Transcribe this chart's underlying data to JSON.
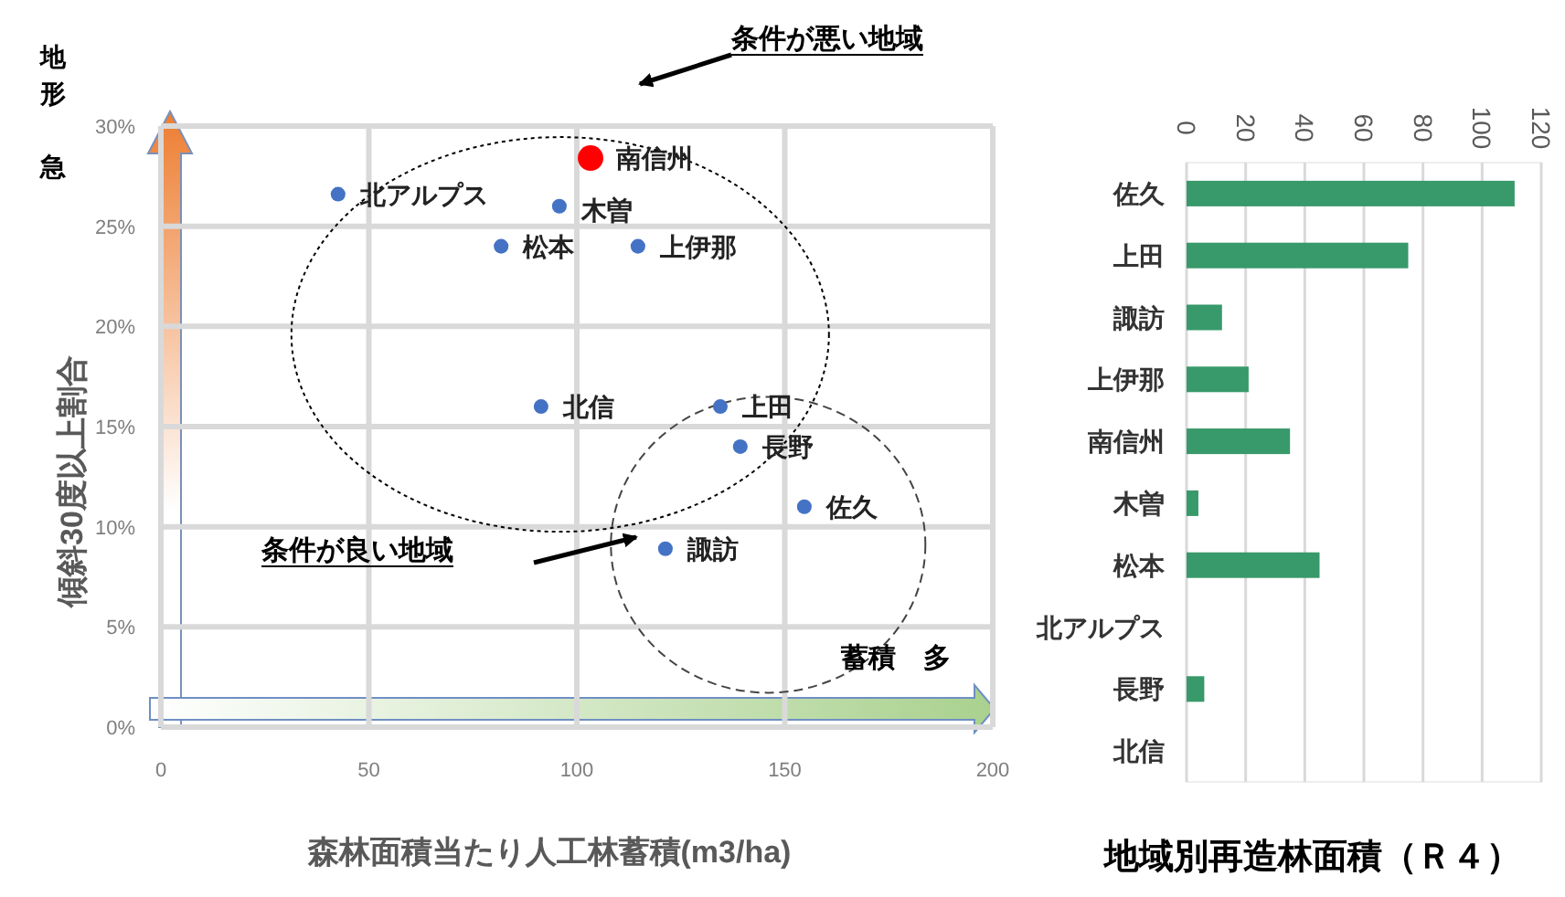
{
  "chart_data": [
    {
      "type": "scatter",
      "xlabel": "森林面積当たり人工林蓄積(m3/ha)",
      "ylabel": "傾斜30度以上割合",
      "xlim": [
        0,
        200
      ],
      "xticks": [
        0,
        50,
        100,
        150,
        200
      ],
      "ylim": [
        0,
        30
      ],
      "yticks": [
        {
          "value": 0,
          "label": "0%"
        },
        {
          "value": 5,
          "label": "5%"
        },
        {
          "value": 10,
          "label": "10%"
        },
        {
          "value": 15,
          "label": "15%"
        },
        {
          "value": 20,
          "label": "20%"
        },
        {
          "value": 25,
          "label": "25%"
        },
        {
          "value": 30,
          "label": "30%"
        }
      ],
      "grid": true,
      "marker": "circle",
      "series": [
        {
          "color": "#4472c4",
          "x": [
            42.6,
            103.3,
            95.8,
            81.8,
            114.7,
            91.4,
            134.5,
            139.3,
            154.7,
            121.3
          ],
          "values": [
            26.6,
            28.4,
            26.0,
            24.0,
            24.0,
            16.0,
            16.0,
            14.0,
            11.0,
            8.9
          ],
          "sizes": [
            0.33,
            1,
            0.33,
            0.33,
            0.33,
            0.33,
            0.33,
            0.33,
            0.33,
            0.33
          ],
          "colors": [
            null,
            "#ff0000",
            null,
            null,
            null,
            null,
            null,
            null,
            null,
            null
          ],
          "value_labels": [
            "北アルプス",
            "南信州",
            "木曽",
            "松本",
            "上伊那",
            "北信",
            "上田",
            "長野",
            "佐久",
            "諏訪"
          ]
        }
      ],
      "annotations": [
        "条件が悪い地域",
        "条件が良い地域",
        "蓄積　多",
        "地形",
        "急"
      ]
    },
    {
      "type": "bar",
      "orientation": "horizontal",
      "title": "地域別再造林面積（Ｒ４）",
      "categories": [
        "佐久",
        "上田",
        "諏訪",
        "上伊那",
        "南信州",
        "木曽",
        "松本",
        "北アルプス",
        "長野",
        "北信"
      ],
      "values": [
        111,
        75,
        12,
        21,
        35,
        4,
        45,
        0,
        6,
        0
      ],
      "color": "#38996a",
      "xlim": [
        0,
        120
      ],
      "xticks": [
        0,
        20,
        40,
        60,
        80,
        100,
        120
      ],
      "grid": "x"
    }
  ]
}
